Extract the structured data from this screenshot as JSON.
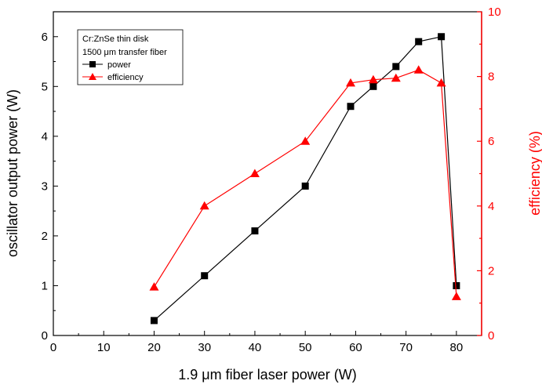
{
  "chart_data": {
    "type": "line",
    "x": [
      20,
      30,
      40,
      50,
      59,
      63.5,
      68,
      72.5,
      77,
      80
    ],
    "series": [
      {
        "name": "power",
        "axis": "left",
        "color": "#000000",
        "marker": "square",
        "values": [
          0.3,
          1.2,
          2.1,
          3.0,
          4.6,
          5.0,
          5.4,
          5.9,
          6.0,
          1.0
        ]
      },
      {
        "name": "efficiency",
        "axis": "right",
        "color": "#ff0000",
        "marker": "triangle",
        "values": [
          1.5,
          4.0,
          5.0,
          6.0,
          7.8,
          7.9,
          7.95,
          8.2,
          7.8,
          1.2
        ]
      }
    ],
    "xlabel": "1.9 μm fiber laser power (W)",
    "ylabel": "oscillator output power (W)",
    "y2label": "efficiency (%)",
    "xlim": [
      0,
      85
    ],
    "ylim": [
      0,
      6.5
    ],
    "y2lim": [
      0,
      10
    ],
    "xticks": [
      0,
      10,
      20,
      30,
      40,
      50,
      60,
      70,
      80
    ],
    "yticks": [
      0,
      1,
      2,
      3,
      4,
      5,
      6
    ],
    "y2ticks": [
      0,
      2,
      4,
      6,
      8,
      10
    ],
    "grid": false,
    "legend_position": "top-left",
    "legend_title_lines": [
      "Cr:ZnSe thin disk",
      "1500 μm transfer fiber"
    ],
    "colors": {
      "left_axis": "#000000",
      "right_axis": "#ff0000"
    }
  }
}
